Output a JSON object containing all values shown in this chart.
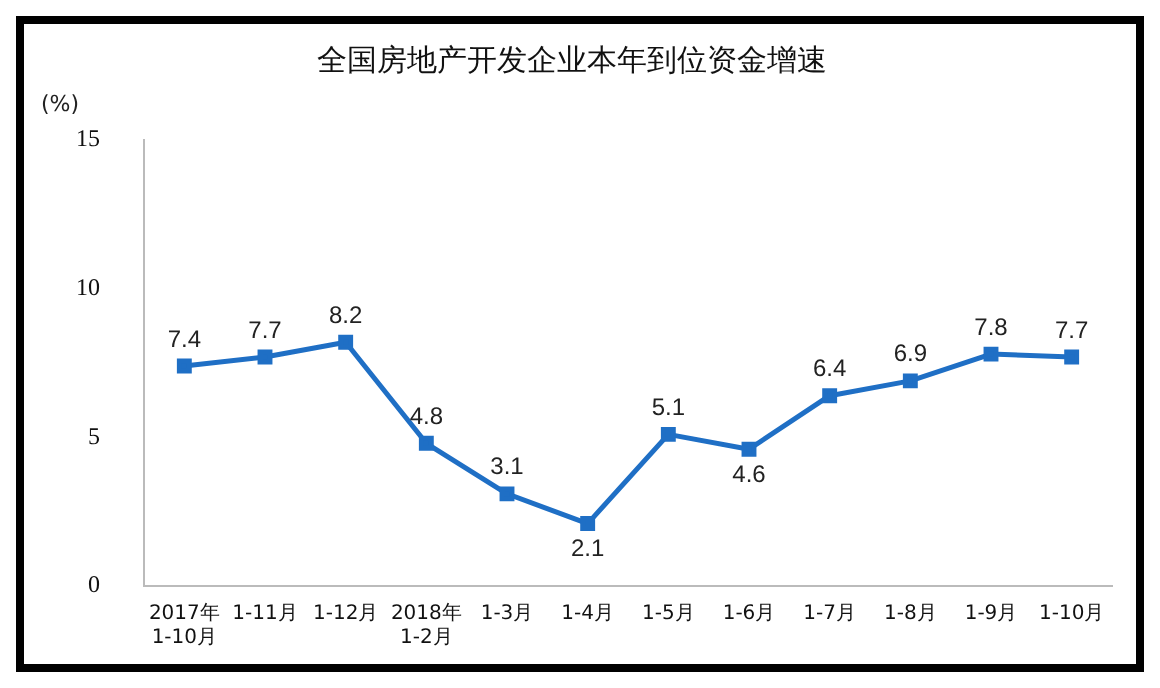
{
  "chart_data": {
    "type": "line",
    "title": "全国房地产开发企业本年到位资金增速",
    "ylabel": "(%)",
    "categories": [
      "2017年\n1-10月",
      "1-11月",
      "1-12月",
      "2018年\n1-2月",
      "1-3月",
      "1-4月",
      "1-5月",
      "1-6月",
      "1-7月",
      "1-8月",
      "1-9月",
      "1-10月"
    ],
    "series": [
      {
        "color": "#1f6fc5",
        "values": [
          7.4,
          7.7,
          8.2,
          4.8,
          3.1,
          2.1,
          5.1,
          4.6,
          6.4,
          6.9,
          7.8,
          7.7
        ]
      }
    ],
    "ylim": [
      0,
      15
    ],
    "yticks": [
      0,
      5,
      10,
      15
    ],
    "grid": false,
    "legend": false,
    "marker": "square",
    "data_labels": true
  }
}
